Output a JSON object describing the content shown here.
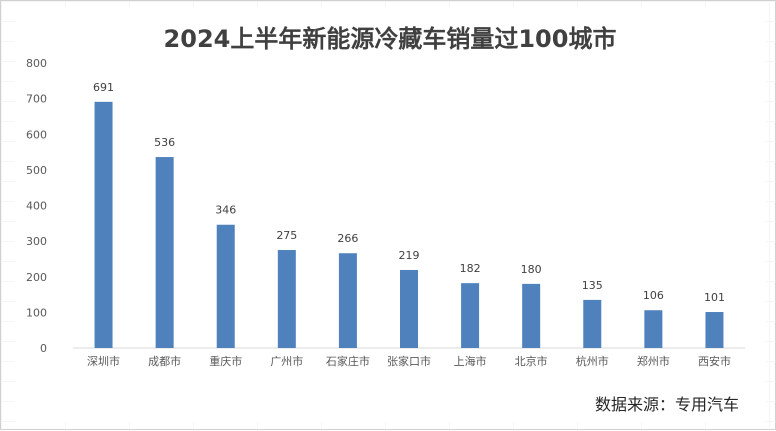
{
  "chart_data": {
    "type": "bar",
    "title": "2024上半年新能源冷藏车销量过100城市",
    "categories": [
      "深圳市",
      "成都市",
      "重庆市",
      "广州市",
      "石家庄市",
      "张家口市",
      "上海市",
      "北京市",
      "杭州市",
      "郑州市",
      "西安市"
    ],
    "values": [
      691,
      536,
      346,
      275,
      266,
      219,
      182,
      180,
      135,
      106,
      101
    ],
    "ylim": [
      0,
      800
    ],
    "yticks": [
      0,
      100,
      200,
      300,
      400,
      500,
      600,
      700,
      800
    ],
    "xlabel": "",
    "ylabel": "",
    "grid": false,
    "bar_color": "#4f81bd",
    "data_labels": true
  },
  "source_note": "数据来源：专用汽车"
}
